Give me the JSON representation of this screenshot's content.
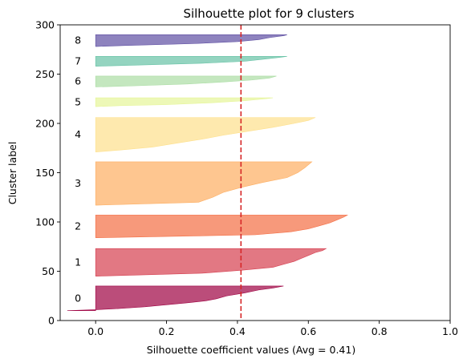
{
  "chart_data": {
    "type": "area",
    "title": "Silhouette plot for 9 clusters",
    "xlabel": "Silhouette coefficient values (Avg = 0.41)",
    "ylabel": "Cluster label",
    "xlim": [
      -0.1,
      1.0
    ],
    "ylim": [
      0,
      300
    ],
    "xticks": [
      0.0,
      0.2,
      0.4,
      0.6,
      0.8,
      1.0
    ],
    "xtick_labels": [
      "0.0",
      "0.2",
      "0.4",
      "0.6",
      "0.8",
      "1.0"
    ],
    "yticks": [
      0,
      50,
      100,
      150,
      200,
      250,
      300
    ],
    "ytick_labels": [
      "0",
      "50",
      "100",
      "150",
      "200",
      "250",
      "300"
    ],
    "grid": false,
    "average_line": {
      "value": 0.41,
      "color": "#d62728",
      "style": "dashed"
    },
    "clusters": [
      {
        "label": "0",
        "color": "#9e0142",
        "y_range": [
          10,
          35
        ],
        "profile": [
          [
            10,
            -0.08
          ],
          [
            11,
            0.0
          ],
          [
            12,
            0.06
          ],
          [
            14,
            0.14
          ],
          [
            16,
            0.2
          ],
          [
            18,
            0.26
          ],
          [
            20,
            0.31
          ],
          [
            22,
            0.34
          ],
          [
            25,
            0.37
          ],
          [
            28,
            0.42
          ],
          [
            31,
            0.46
          ],
          [
            33,
            0.5
          ],
          [
            35,
            0.53
          ]
        ]
      },
      {
        "label": "1",
        "color": "#d53e4f",
        "y_range": [
          45,
          73
        ],
        "profile": [
          [
            45,
            0.0
          ],
          [
            48,
            0.3
          ],
          [
            51,
            0.41
          ],
          [
            54,
            0.5
          ],
          [
            57,
            0.53
          ],
          [
            60,
            0.56
          ],
          [
            63,
            0.58
          ],
          [
            66,
            0.6
          ],
          [
            69,
            0.62
          ],
          [
            71,
            0.64
          ],
          [
            73,
            0.65
          ]
        ]
      },
      {
        "label": "2",
        "color": "#f46d43",
        "y_range": [
          84,
          107
        ],
        "profile": [
          [
            84,
            0.0
          ],
          [
            87,
            0.45
          ],
          [
            90,
            0.55
          ],
          [
            93,
            0.6
          ],
          [
            96,
            0.63
          ],
          [
            99,
            0.66
          ],
          [
            102,
            0.68
          ],
          [
            105,
            0.7
          ],
          [
            107,
            0.71
          ]
        ]
      },
      {
        "label": "3",
        "color": "#fdae61",
        "y_range": [
          117,
          161
        ],
        "profile": [
          [
            117,
            0.0
          ],
          [
            120,
            0.29
          ],
          [
            125,
            0.33
          ],
          [
            130,
            0.36
          ],
          [
            135,
            0.41
          ],
          [
            140,
            0.47
          ],
          [
            145,
            0.54
          ],
          [
            150,
            0.57
          ],
          [
            155,
            0.59
          ],
          [
            158,
            0.6
          ],
          [
            161,
            0.61
          ]
        ]
      },
      {
        "label": "4",
        "color": "#fee08b",
        "y_range": [
          171,
          206
        ],
        "profile": [
          [
            171,
            0.0
          ],
          [
            173,
            0.07
          ],
          [
            176,
            0.16
          ],
          [
            180,
            0.23
          ],
          [
            184,
            0.3
          ],
          [
            188,
            0.36
          ],
          [
            192,
            0.43
          ],
          [
            196,
            0.5
          ],
          [
            200,
            0.56
          ],
          [
            203,
            0.6
          ],
          [
            206,
            0.62
          ]
        ]
      },
      {
        "label": "5",
        "color": "#e6f598",
        "y_range": [
          217,
          226
        ],
        "profile": [
          [
            217,
            0.0
          ],
          [
            218,
            0.07
          ],
          [
            219,
            0.2
          ],
          [
            221,
            0.33
          ],
          [
            223,
            0.42
          ],
          [
            225,
            0.48
          ],
          [
            226,
            0.5
          ]
        ]
      },
      {
        "label": "6",
        "color": "#abdda4",
        "y_range": [
          237,
          248
        ],
        "profile": [
          [
            237,
            0.0
          ],
          [
            238,
            0.1
          ],
          [
            240,
            0.26
          ],
          [
            242,
            0.36
          ],
          [
            244,
            0.44
          ],
          [
            246,
            0.49
          ],
          [
            248,
            0.51
          ]
        ]
      },
      {
        "label": "7",
        "color": "#66c2a5",
        "y_range": [
          258,
          268
        ],
        "profile": [
          [
            258,
            0.0
          ],
          [
            259,
            0.1
          ],
          [
            261,
            0.3
          ],
          [
            263,
            0.42
          ],
          [
            265,
            0.47
          ],
          [
            267,
            0.52
          ],
          [
            268,
            0.54
          ]
        ]
      },
      {
        "label": "8",
        "color": "#5e4fa2",
        "y_range": [
          278,
          290
        ],
        "profile": [
          [
            278,
            0.0
          ],
          [
            279,
            0.08
          ],
          [
            281,
            0.28
          ],
          [
            283,
            0.4
          ],
          [
            285,
            0.46
          ],
          [
            287,
            0.49
          ],
          [
            289,
            0.53
          ],
          [
            290,
            0.54
          ]
        ]
      }
    ]
  }
}
